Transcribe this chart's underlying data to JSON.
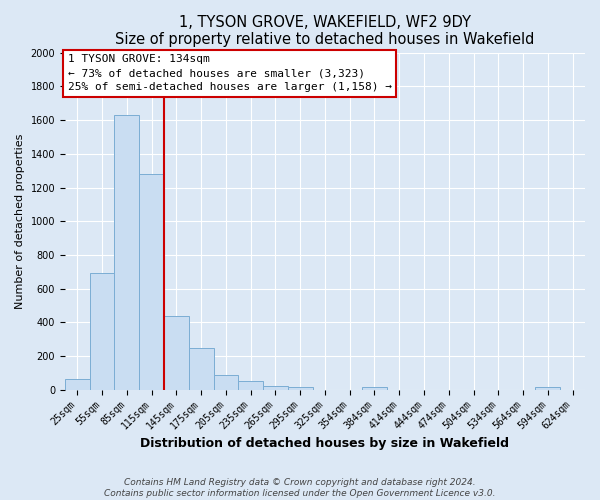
{
  "title": "1, TYSON GROVE, WAKEFIELD, WF2 9DY",
  "subtitle": "Size of property relative to detached houses in Wakefield",
  "xlabel": "Distribution of detached houses by size in Wakefield",
  "ylabel": "Number of detached properties",
  "bar_labels": [
    "25sqm",
    "55sqm",
    "85sqm",
    "115sqm",
    "145sqm",
    "175sqm",
    "205sqm",
    "235sqm",
    "265sqm",
    "295sqm",
    "325sqm",
    "354sqm",
    "384sqm",
    "414sqm",
    "444sqm",
    "474sqm",
    "504sqm",
    "534sqm",
    "564sqm",
    "594sqm",
    "624sqm"
  ],
  "bar_values": [
    65,
    690,
    1630,
    1280,
    435,
    250,
    88,
    50,
    25,
    18,
    0,
    0,
    15,
    0,
    0,
    0,
    0,
    0,
    0,
    15,
    0
  ],
  "bar_color": "#c9ddf2",
  "bar_edge_color": "#7badd4",
  "ylim": [
    0,
    2000
  ],
  "yticks": [
    0,
    200,
    400,
    600,
    800,
    1000,
    1200,
    1400,
    1600,
    1800,
    2000
  ],
  "vline_x": 3.5,
  "vline_color": "#cc0000",
  "annotation_line1": "1 TYSON GROVE: 134sqm",
  "annotation_line2": "← 73% of detached houses are smaller (3,323)",
  "annotation_line3": "25% of semi-detached houses are larger (1,158) →",
  "footer1": "Contains HM Land Registry data © Crown copyright and database right 2024.",
  "footer2": "Contains public sector information licensed under the Open Government Licence v3.0.",
  "bg_color": "#dce8f5",
  "plot_bg_color": "#dce8f5",
  "grid_color": "white",
  "title_fontsize": 10.5,
  "xlabel_fontsize": 9,
  "ylabel_fontsize": 8,
  "tick_fontsize": 7,
  "annotation_fontsize": 8,
  "footer_fontsize": 6.5
}
